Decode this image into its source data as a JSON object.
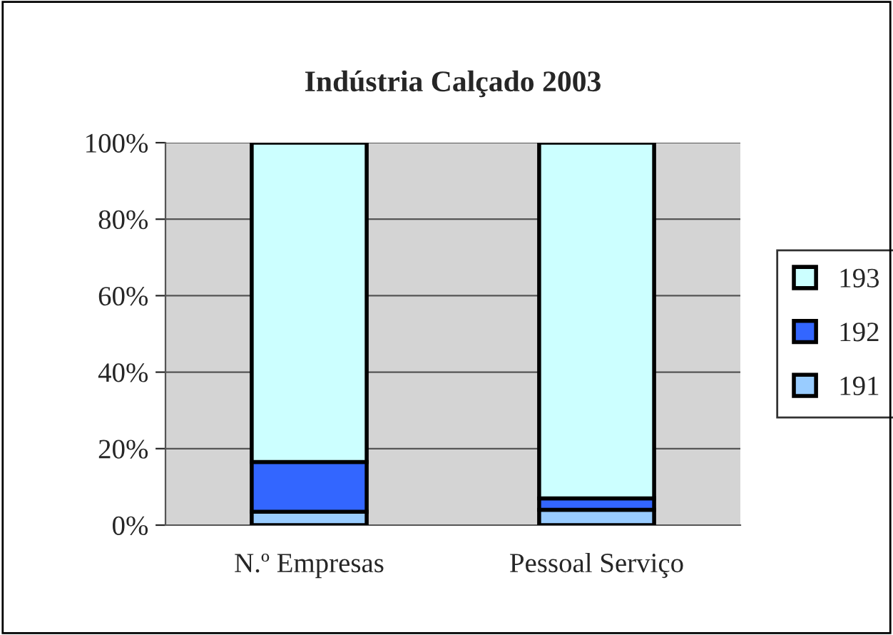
{
  "chart_data": {
    "type": "bar",
    "title": "Indústria Calçado 2003",
    "stacked": true,
    "categories": [
      "N.º Empresas",
      "Pessoal Serviço"
    ],
    "series": [
      {
        "name": "191",
        "color": "#99ccff",
        "values": [
          3.5,
          4
        ]
      },
      {
        "name": "192",
        "color": "#3366ff",
        "values": [
          13,
          3
        ]
      },
      {
        "name": "193",
        "color": "#ccffff",
        "values": [
          83.5,
          93
        ]
      }
    ],
    "ylim": [
      0,
      100
    ],
    "yticks": [
      {
        "value": 0,
        "label": "0%"
      },
      {
        "value": 20,
        "label": "20%"
      },
      {
        "value": 40,
        "label": "40%"
      },
      {
        "value": 60,
        "label": "60%"
      },
      {
        "value": 80,
        "label": "80%"
      },
      {
        "value": 100,
        "label": "100%"
      }
    ],
    "grid": "y",
    "legend": "right"
  }
}
